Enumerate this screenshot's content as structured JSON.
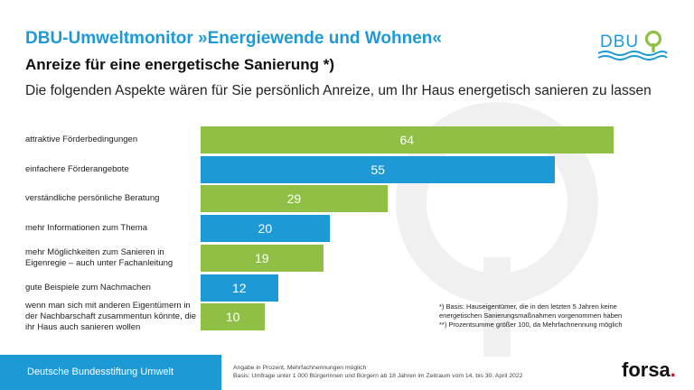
{
  "header": {
    "title": "DBU-Umweltmonitor »Energiewende und Wohnen«",
    "subtitle": "Anreize für eine energetische Sanierung *)",
    "question": "Die folgenden Aspekte wären für Sie persönlich Anreize, um Ihr Haus energetisch sanieren zu lassen"
  },
  "logo": {
    "text": "DBU",
    "colors": {
      "text": "#1d9ad6",
      "leaf": "#8fc045"
    }
  },
  "colors": {
    "green": "#8fc045",
    "blue": "#1d9ad6"
  },
  "chart_data": {
    "type": "bar",
    "orientation": "horizontal",
    "unit": "Prozent",
    "xlim": [
      0,
      67
    ],
    "categories": [
      "attraktive Förderbedingungen",
      "einfachere Förderangebote",
      "verständliche persönliche Beratung",
      "mehr Informationen zum Thema",
      "mehr Möglichkeiten zum Sanieren in Eigenregie – auch unter Fachanleitung",
      "gute Beispiele zum Nachmachen",
      "wenn man sich mit anderen Eigentümern in der Nachbarschaft zusammentun könnte, die ihr Haus auch sanieren wollen"
    ],
    "values": [
      64,
      55,
      29,
      20,
      19,
      12,
      10
    ],
    "bar_colors": [
      "green",
      "blue",
      "green",
      "blue",
      "green",
      "blue",
      "green"
    ]
  },
  "footnotes": [
    "*) Basis: Hauseigentümer, die in den letzten 5 Jahren keine",
    "energetischen Sanierungsmaßnahmen vorgenommen haben",
    "**) Prozentsumme größer 100, da Mehrfachnennung möglich"
  ],
  "footer": {
    "organization": "Deutsche Bundesstiftung Umwelt",
    "source_line1": "Angabe in Prozent, Mehrfachnennungen möglich",
    "source_line2": "Basis: Umfrage unter 1 000 Bürgerinnen und Bürgern ab 18 Jahren im Zeitraum vom 14. bis 30. April 2022",
    "brand": "forsa",
    "brand_dot": "."
  }
}
